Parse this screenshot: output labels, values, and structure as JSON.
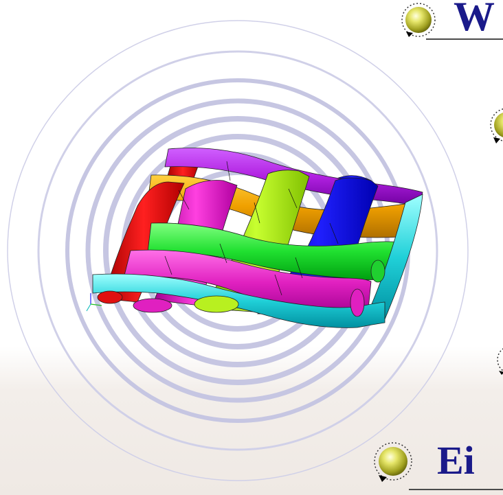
{
  "slide": {
    "heading_top": "W",
    "heading_bottom": "Ei"
  },
  "colors": {
    "ring": "#c9c9e3",
    "ring_thin": "#d4d4ea",
    "heading": "#1a1a8a",
    "bullet": "#c8c832",
    "yarn_red": "#e01010",
    "yarn_orange": "#f0a000",
    "yarn_magenta": "#e020c0",
    "yarn_purple": "#b020e0",
    "yarn_lime": "#a0e010",
    "yarn_blue": "#1010d8",
    "yarn_green": "#20e030",
    "yarn_cyan": "#20d0d8"
  },
  "icons": {
    "bullet": "gold-sphere-icon",
    "graphic": "woven-fabric-3d-model"
  }
}
